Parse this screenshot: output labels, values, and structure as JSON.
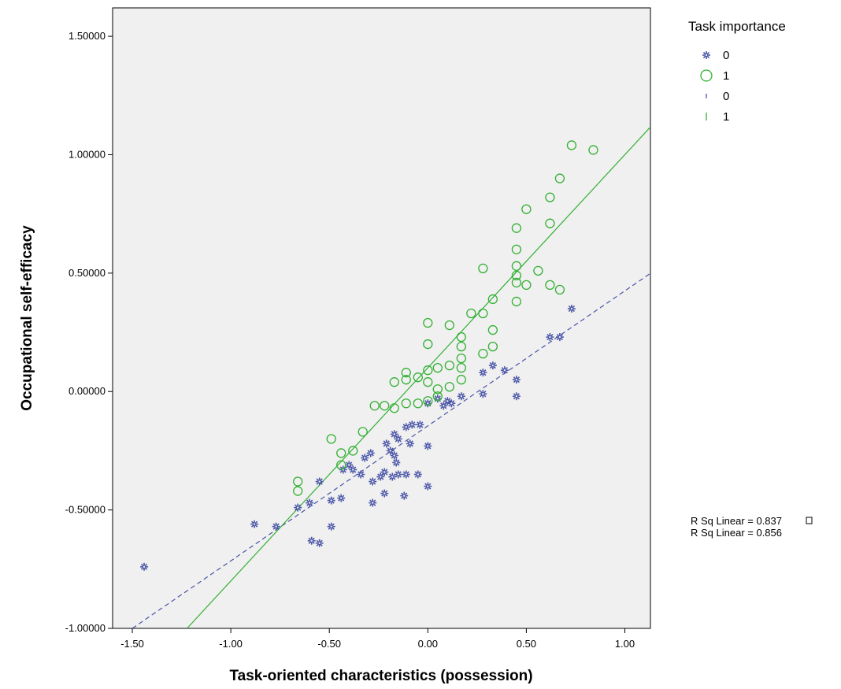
{
  "chart_data": {
    "type": "scatter",
    "xlabel": "Task-oriented characteristics (possession)",
    "ylabel": "Occupational self-efficacy",
    "xlim": [
      -1.6,
      1.13
    ],
    "ylim": [
      -1.0,
      1.62
    ],
    "xticks": [
      -1.5,
      -1.0,
      -0.5,
      0.0,
      0.5,
      1.0
    ],
    "xtick_labels": [
      "-1.50",
      "-1.00",
      "-0.50",
      "0.00",
      "0.50",
      "1.00"
    ],
    "yticks": [
      -1.0,
      -0.5,
      0.0,
      0.5,
      1.0,
      1.5
    ],
    "ytick_labels": [
      "-1.00000",
      "-0.50000",
      "0.00000",
      "0.50000",
      "1.00000",
      "1.50000"
    ],
    "grid": false,
    "legend": {
      "title": "Task importance",
      "placement": "top-right",
      "entries": [
        {
          "label": "0",
          "kind": "marker",
          "series": 0
        },
        {
          "label": "1",
          "kind": "marker",
          "series": 1
        },
        {
          "label": "0",
          "kind": "line",
          "series": 0
        },
        {
          "label": "1",
          "kind": "line",
          "series": 1
        }
      ]
    },
    "series": [
      {
        "name": "0",
        "marker": "star",
        "color": "#4a55a8",
        "points": [
          [
            -1.44,
            -0.74
          ],
          [
            -0.88,
            -0.56
          ],
          [
            -0.77,
            -0.57
          ],
          [
            -0.66,
            -0.49
          ],
          [
            -0.6,
            -0.47
          ],
          [
            -0.59,
            -0.63
          ],
          [
            -0.55,
            -0.64
          ],
          [
            -0.55,
            -0.38
          ],
          [
            -0.49,
            -0.46
          ],
          [
            -0.49,
            -0.57
          ],
          [
            -0.44,
            -0.45
          ],
          [
            -0.43,
            -0.33
          ],
          [
            -0.4,
            -0.31
          ],
          [
            -0.38,
            -0.33
          ],
          [
            -0.34,
            -0.35
          ],
          [
            -0.32,
            -0.28
          ],
          [
            -0.29,
            -0.26
          ],
          [
            -0.28,
            -0.38
          ],
          [
            -0.28,
            -0.47
          ],
          [
            -0.24,
            -0.36
          ],
          [
            -0.22,
            -0.43
          ],
          [
            -0.22,
            -0.34
          ],
          [
            -0.21,
            -0.22
          ],
          [
            -0.19,
            -0.25
          ],
          [
            -0.18,
            -0.36
          ],
          [
            -0.17,
            -0.18
          ],
          [
            -0.17,
            -0.27
          ],
          [
            -0.16,
            -0.3
          ],
          [
            -0.15,
            -0.2
          ],
          [
            -0.15,
            -0.35
          ],
          [
            -0.12,
            -0.44
          ],
          [
            -0.11,
            -0.15
          ],
          [
            -0.11,
            -0.35
          ],
          [
            -0.09,
            -0.22
          ],
          [
            -0.08,
            -0.14
          ],
          [
            -0.05,
            -0.35
          ],
          [
            -0.04,
            -0.14
          ],
          [
            0.0,
            -0.05
          ],
          [
            0.0,
            -0.23
          ],
          [
            0.0,
            -0.4
          ],
          [
            0.05,
            -0.03
          ],
          [
            0.08,
            -0.06
          ],
          [
            0.1,
            -0.04
          ],
          [
            0.12,
            -0.05
          ],
          [
            0.17,
            -0.02
          ],
          [
            0.28,
            0.08
          ],
          [
            0.28,
            -0.01
          ],
          [
            0.33,
            0.11
          ],
          [
            0.39,
            0.09
          ],
          [
            0.45,
            0.05
          ],
          [
            0.45,
            -0.02
          ],
          [
            0.62,
            0.23
          ],
          [
            0.67,
            0.23
          ],
          [
            0.73,
            0.35
          ]
        ],
        "fit": {
          "slope": 0.57,
          "intercept": -0.145
        },
        "line_style": "dashed"
      },
      {
        "name": "1",
        "marker": "circle",
        "color": "#33b033",
        "points": [
          [
            -0.66,
            -0.38
          ],
          [
            -0.66,
            -0.42
          ],
          [
            -0.49,
            -0.2
          ],
          [
            -0.44,
            -0.26
          ],
          [
            -0.44,
            -0.31
          ],
          [
            -0.38,
            -0.25
          ],
          [
            -0.33,
            -0.17
          ],
          [
            -0.27,
            -0.06
          ],
          [
            -0.22,
            -0.06
          ],
          [
            -0.17,
            -0.07
          ],
          [
            -0.17,
            0.04
          ],
          [
            -0.11,
            -0.05
          ],
          [
            -0.11,
            0.05
          ],
          [
            -0.11,
            0.08
          ],
          [
            -0.05,
            0.06
          ],
          [
            -0.05,
            -0.05
          ],
          [
            0.0,
            0.29
          ],
          [
            0.0,
            0.2
          ],
          [
            0.0,
            0.09
          ],
          [
            0.0,
            0.04
          ],
          [
            0.0,
            -0.04
          ],
          [
            0.05,
            0.1
          ],
          [
            0.05,
            0.01
          ],
          [
            0.05,
            -0.02
          ],
          [
            0.11,
            0.28
          ],
          [
            0.11,
            0.11
          ],
          [
            0.11,
            0.02
          ],
          [
            0.17,
            0.23
          ],
          [
            0.17,
            0.19
          ],
          [
            0.17,
            0.14
          ],
          [
            0.17,
            0.1
          ],
          [
            0.17,
            0.05
          ],
          [
            0.22,
            0.33
          ],
          [
            0.28,
            0.52
          ],
          [
            0.28,
            0.33
          ],
          [
            0.28,
            0.16
          ],
          [
            0.33,
            0.39
          ],
          [
            0.33,
            0.26
          ],
          [
            0.33,
            0.19
          ],
          [
            0.45,
            0.69
          ],
          [
            0.45,
            0.6
          ],
          [
            0.45,
            0.53
          ],
          [
            0.45,
            0.49
          ],
          [
            0.45,
            0.46
          ],
          [
            0.45,
            0.38
          ],
          [
            0.5,
            0.77
          ],
          [
            0.5,
            0.45
          ],
          [
            0.56,
            0.51
          ],
          [
            0.62,
            0.82
          ],
          [
            0.62,
            0.71
          ],
          [
            0.62,
            0.45
          ],
          [
            0.67,
            0.9
          ],
          [
            0.67,
            0.43
          ],
          [
            0.73,
            1.04
          ],
          [
            0.84,
            1.02
          ]
        ],
        "fit": {
          "slope": 0.9,
          "intercept": 0.1
        },
        "line_style": "solid"
      }
    ],
    "annotations": [
      "R Sq Linear = 0.837",
      "R Sq Linear = 0.856"
    ]
  }
}
